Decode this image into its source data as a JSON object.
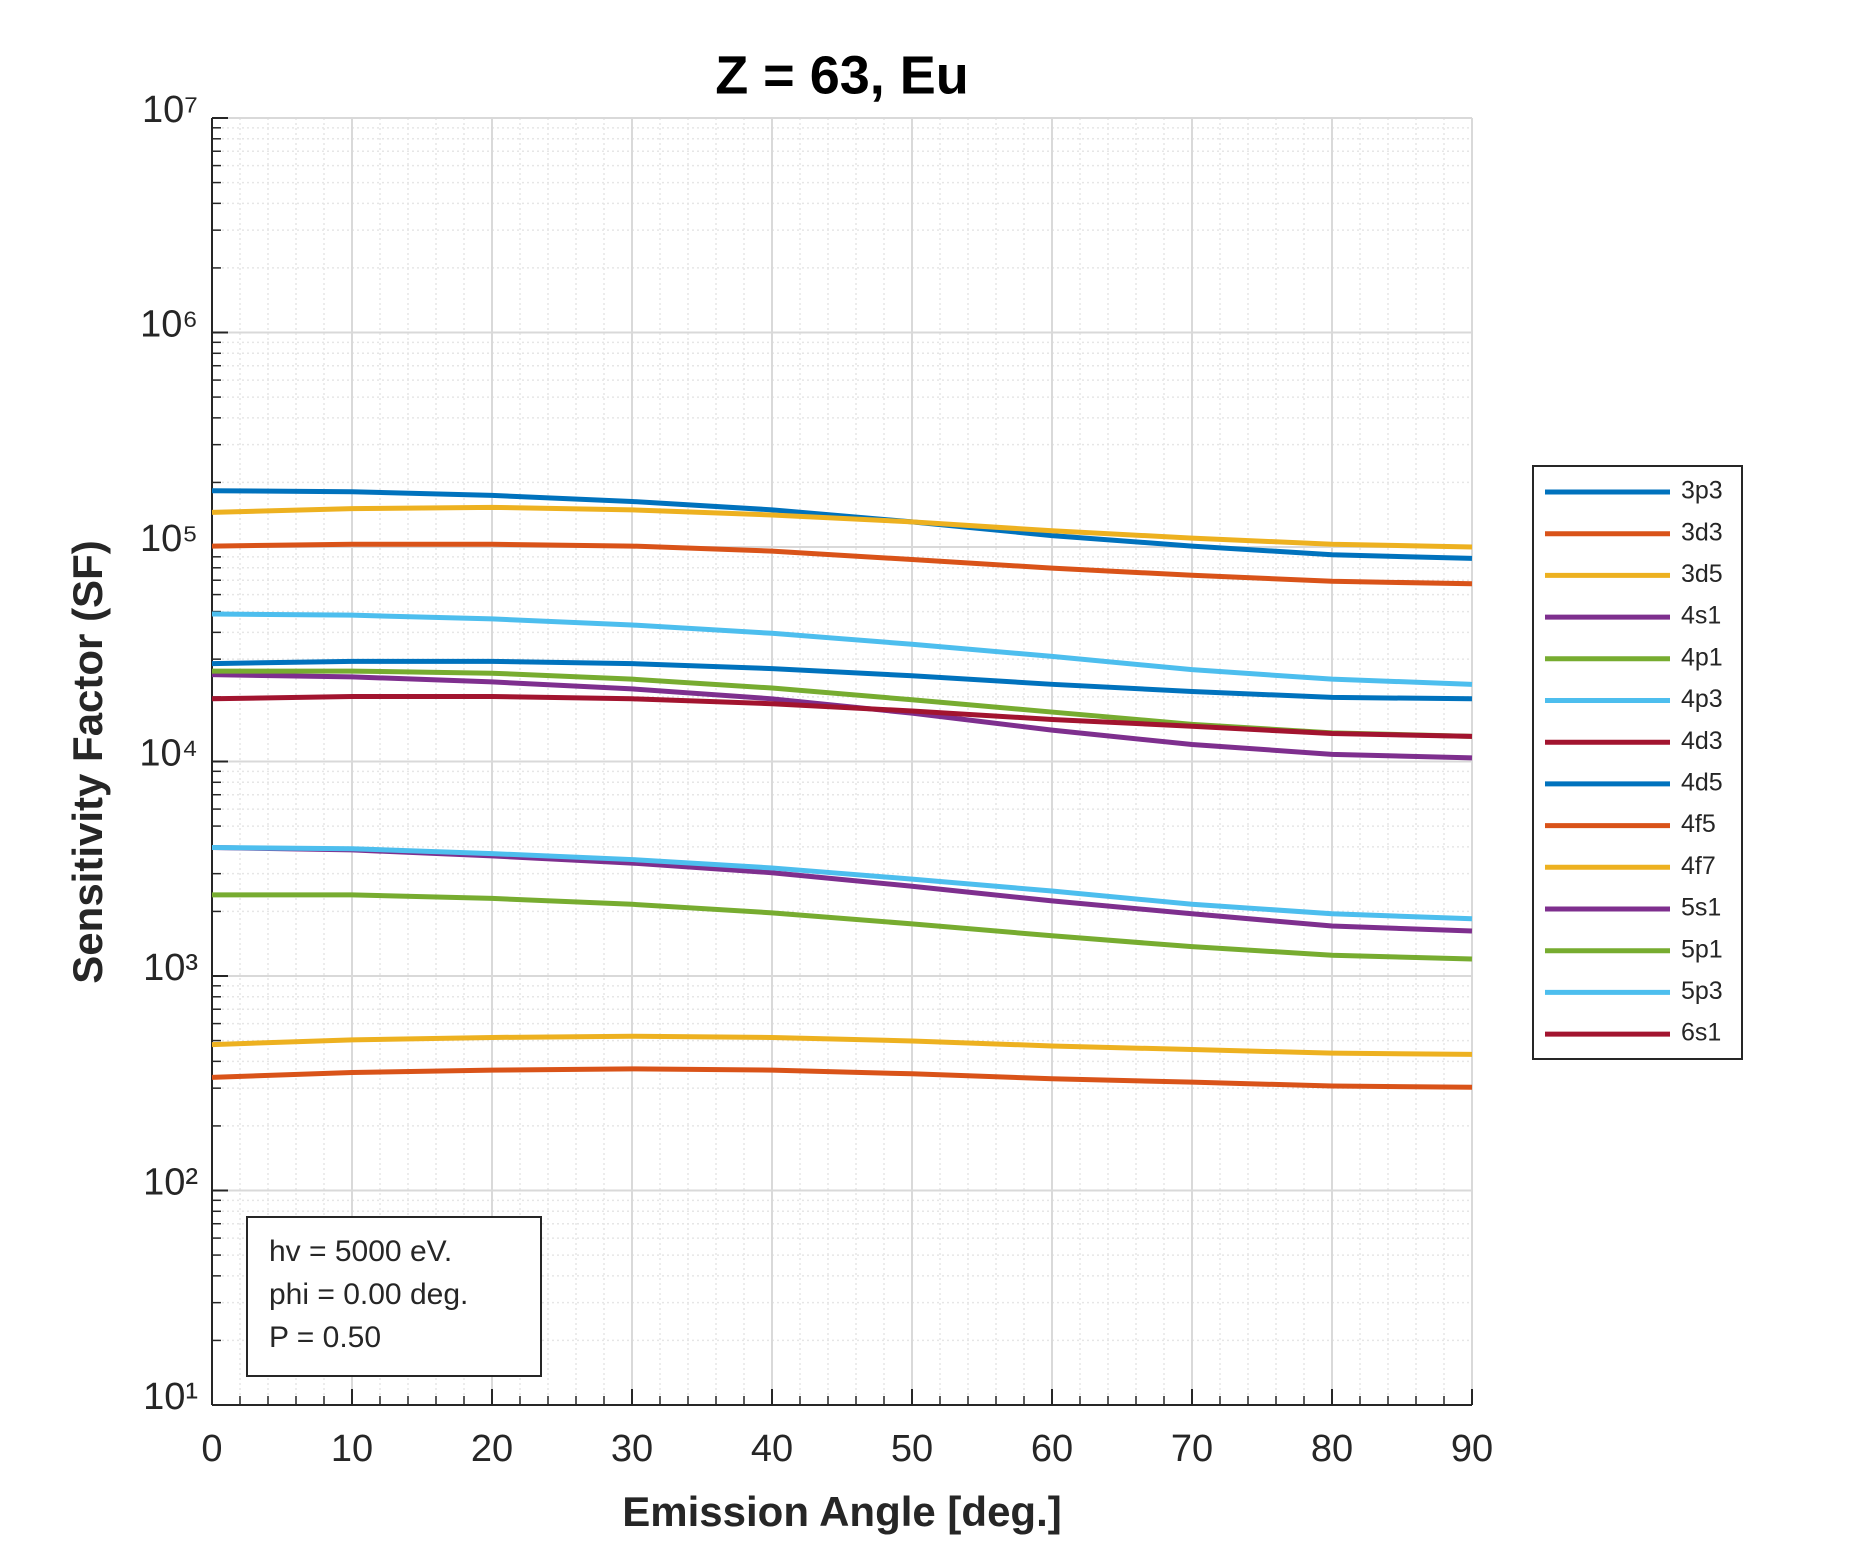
{
  "chart_data": {
    "type": "line",
    "title": "Z = 63, Eu",
    "xlabel": "Emission Angle [deg.]",
    "ylabel": "Sensitivity Factor (SF)",
    "x": [
      0,
      10,
      20,
      30,
      40,
      50,
      60,
      70,
      80,
      90
    ],
    "xlim": [
      0,
      90
    ],
    "xticks": [
      0,
      10,
      20,
      30,
      40,
      50,
      60,
      70,
      80,
      90
    ],
    "ylim": [
      10,
      10000000
    ],
    "yscale": "log",
    "yticks": [
      {
        "value": 10,
        "label": "10¹"
      },
      {
        "value": 100,
        "label": "10²"
      },
      {
        "value": 1000,
        "label": "10³"
      },
      {
        "value": 10000,
        "label": "10⁴"
      },
      {
        "value": 100000,
        "label": "10⁵"
      },
      {
        "value": 1000000,
        "label": "10⁶"
      },
      {
        "value": 10000000,
        "label": "10⁷"
      }
    ],
    "grid": true,
    "minor_grid": true,
    "legend": "outside-right",
    "annotations": [
      "hv = 5000 eV.",
      "phi = 0.00 deg.",
      "P = 0.50"
    ],
    "series": [
      {
        "name": "3p3",
        "color": "#0072BD",
        "values": [
          183000,
          181000,
          174000,
          163000,
          149000,
          131000,
          113000,
          101000,
          92000,
          88500
        ]
      },
      {
        "name": "3d3",
        "color": "#D95319",
        "values": [
          101000,
          103000,
          103000,
          101000,
          95700,
          87400,
          79700,
          73800,
          69200,
          67400
        ]
      },
      {
        "name": "3d5",
        "color": "#EDB120",
        "values": [
          145000,
          151000,
          153000,
          149000,
          141000,
          131000,
          119000,
          110000,
          103000,
          100000
        ]
      },
      {
        "name": "4s1",
        "color": "#7E2F8E",
        "values": [
          25400,
          24800,
          23500,
          21800,
          19600,
          16800,
          14000,
          12000,
          10800,
          10400
        ]
      },
      {
        "name": "4p1",
        "color": "#77AC30",
        "values": [
          26400,
          26400,
          25800,
          24200,
          22000,
          19400,
          17000,
          14900,
          13600,
          13100
        ]
      },
      {
        "name": "4p3",
        "color": "#4DBEEE",
        "values": [
          48700,
          48100,
          46200,
          43300,
          39600,
          35200,
          30900,
          26800,
          24200,
          22900
        ]
      },
      {
        "name": "4d3",
        "color": "#A2142F",
        "values": [
          19600,
          20100,
          20100,
          19600,
          18600,
          17200,
          15700,
          14600,
          13500,
          13100
        ]
      },
      {
        "name": "4d5",
        "color": "#0072BD",
        "values": [
          28600,
          29300,
          29300,
          28600,
          27100,
          25100,
          22900,
          21200,
          19900,
          19600
        ]
      },
      {
        "name": "4f5",
        "color": "#D95319",
        "values": [
          337,
          355,
          364,
          369,
          364,
          350,
          332,
          320,
          307,
          303
        ]
      },
      {
        "name": "4f7",
        "color": "#EDB120",
        "values": [
          479,
          504,
          517,
          524,
          517,
          498,
          472,
          454,
          437,
          431
        ]
      },
      {
        "name": "5s1",
        "color": "#7E2F8E",
        "values": [
          3970,
          3870,
          3630,
          3360,
          3030,
          2620,
          2240,
          1950,
          1710,
          1620
        ]
      },
      {
        "name": "5p1",
        "color": "#77AC30",
        "values": [
          2390,
          2390,
          2300,
          2160,
          1970,
          1750,
          1540,
          1370,
          1250,
          1200
        ]
      },
      {
        "name": "5p3",
        "color": "#4DBEEE",
        "values": [
          3970,
          3920,
          3720,
          3490,
          3190,
          2830,
          2490,
          2160,
          1950,
          1850
        ]
      },
      {
        "name": "6s1",
        "color": "#A2142F",
        "values": [
          null,
          null,
          null,
          null,
          null,
          null,
          null,
          null,
          null,
          null
        ]
      }
    ]
  }
}
